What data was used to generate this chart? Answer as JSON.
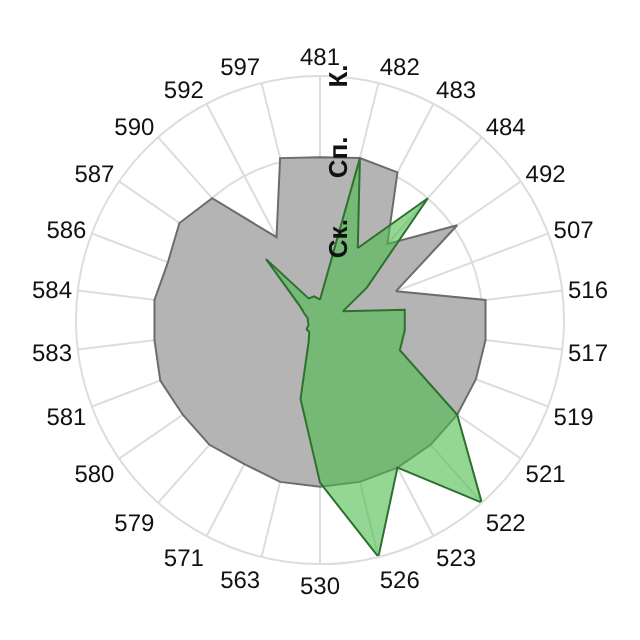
{
  "chart_data": {
    "type": "radar",
    "categories": [
      "481",
      "482",
      "483",
      "484",
      "492",
      "507",
      "516",
      "517",
      "519",
      "521",
      "522",
      "523",
      "526",
      "530",
      "563",
      "571",
      "579",
      "580",
      "581",
      "583",
      "584",
      "586",
      "587",
      "590",
      "592",
      "597"
    ],
    "ylim": [
      0,
      3
    ],
    "yticks": [
      {
        "value": 1,
        "label": "Ск."
      },
      {
        "value": 2,
        "label": "Сп."
      },
      {
        "value": 3,
        "label": "К."
      }
    ],
    "grid": true,
    "series": [
      {
        "color": "#b4b4b4",
        "values": [
          2.0,
          2.05,
          2.05,
          1.25,
          2.05,
          1.0,
          2.05,
          2.05,
          2.05,
          2.05,
          2.05,
          2.05,
          2.05,
          2.05,
          2.05,
          2.0,
          2.05,
          2.05,
          2.1,
          2.05,
          2.05,
          2.0,
          2.1,
          2.0,
          1.15,
          2.05
        ]
      },
      {
        "color": "#4cbb4c",
        "values": [
          0.25,
          2.05,
          1.0,
          2.0,
          0.7,
          0.3,
          1.05,
          1.05,
          1.05,
          2.05,
          3.0,
          2.05,
          3.0,
          2.0,
          1.0,
          0.3,
          0.2,
          0.2,
          0.15,
          0.15,
          0.15,
          0.2,
          0.3,
          1.0,
          0.3,
          0.3
        ]
      }
    ]
  }
}
